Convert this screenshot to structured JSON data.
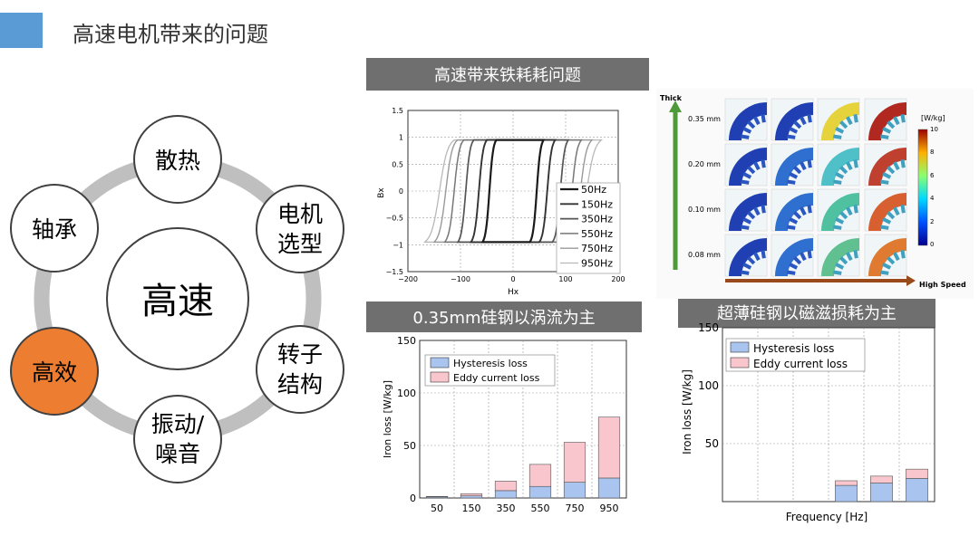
{
  "slide": {
    "title": "高速电机带来的问题"
  },
  "diagram": {
    "center": "高速",
    "nodes": [
      {
        "label1": "散热",
        "label2": ""
      },
      {
        "label1": "电机",
        "label2": "选型"
      },
      {
        "label1": "转子",
        "label2": "结构"
      },
      {
        "label1": "振动/",
        "label2": "噪音"
      },
      {
        "label1": "高效",
        "label2": ""
      },
      {
        "label1": "轴承",
        "label2": ""
      }
    ],
    "colors": {
      "ring": "#bfbfbf",
      "highlight": "#ed7d31",
      "node_border": "#404040"
    }
  },
  "banners": {
    "b1": "高速带来铁耗耗问题",
    "b2": "0.35mm硅钢以涡流为主",
    "b3": "超薄硅钢以磁滋损耗为主",
    "bg": "#6f6f6f"
  },
  "hysteresis_chart": {
    "ylabel": "Bx",
    "xlabel": "Hx",
    "xticks": [
      "−200",
      "−100",
      "0",
      "100",
      "200"
    ],
    "yticks": [
      "1.5",
      "1",
      "0.5",
      "0",
      "−0.5",
      "−1",
      "−1.5"
    ],
    "legend": [
      "50Hz",
      "150Hz",
      "350Hz",
      "550Hz",
      "750Hz",
      "950Hz"
    ]
  },
  "fem_grid": {
    "thick_label": "Thick",
    "rows": [
      "0.35 mm",
      "0.20 mm",
      "0.10 mm",
      "0.08 mm"
    ],
    "speed_label": "High Speed",
    "colorbar_title": "[W/kg]",
    "colorbar_ticks": [
      "10",
      "8",
      "6",
      "4",
      "2",
      "0"
    ]
  },
  "chart_data": [
    {
      "type": "bar",
      "ylabel": "Iron loss [W/kg]",
      "xlabel": "",
      "categories": [
        "50",
        "150",
        "350",
        "550",
        "750",
        "950"
      ],
      "ylim": [
        0,
        150
      ],
      "yticks": [
        "0",
        "50",
        "100",
        "150"
      ],
      "series": [
        {
          "name": "Hysteresis loss",
          "values": [
            1,
            2,
            7,
            11,
            15,
            19
          ],
          "color": "#a9c4ee"
        },
        {
          "name": "Eddy current loss",
          "values": [
            0.5,
            2,
            9,
            21,
            38,
            58
          ],
          "color": "#f8c6cc"
        }
      ]
    },
    {
      "type": "bar",
      "ylabel": "Iron loss [W/kg]",
      "xlabel": "Frequency [Hz]",
      "categories": [
        "",
        "",
        "",
        "",
        "",
        ""
      ],
      "ylim": [
        0,
        150
      ],
      "yticks": [
        "50",
        "100",
        "150"
      ],
      "series": [
        {
          "name": "Hysteresis loss",
          "values": [
            0,
            0,
            0,
            14,
            16,
            20
          ],
          "color": "#a9c4ee"
        },
        {
          "name": "Eddy current loss",
          "values": [
            0,
            0,
            0,
            4,
            6,
            8
          ],
          "color": "#f8c6cc"
        }
      ]
    }
  ]
}
